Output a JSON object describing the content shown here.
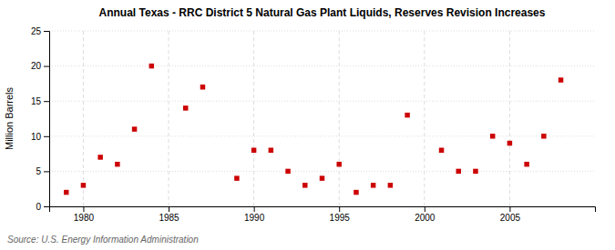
{
  "chart_data": {
    "type": "scatter",
    "title": "Annual Texas - RRC District 5 Natural Gas Plant Liquids, Reserves Revision Increases",
    "ylabel": "Million Barrels",
    "source": "Source: U.S. Energy Information Administration",
    "color": "#cc0000",
    "marker": "square",
    "grid": true,
    "xlim": [
      1978,
      2010
    ],
    "ylim": [
      0,
      25
    ],
    "xticks": [
      1980,
      1985,
      1990,
      1995,
      2000,
      2005
    ],
    "yticks": [
      0,
      5,
      10,
      15,
      20,
      25
    ],
    "x": [
      1979,
      1980,
      1981,
      1982,
      1983,
      1984,
      1986,
      1987,
      1989,
      1990,
      1991,
      1992,
      1993,
      1994,
      1995,
      1996,
      1997,
      1998,
      1999,
      2001,
      2002,
      2003,
      2004,
      2005,
      2006,
      2007,
      2008
    ],
    "values": [
      2.0,
      3.0,
      7.0,
      6.0,
      11.0,
      20.0,
      14.0,
      17.0,
      4.0,
      8.0,
      8.0,
      5.0,
      3.0,
      4.0,
      6.0,
      2.0,
      3.0,
      3.0,
      13.0,
      8.0,
      5.0,
      5.0,
      10.0,
      9.0,
      6.0,
      10.0,
      18.0
    ]
  }
}
